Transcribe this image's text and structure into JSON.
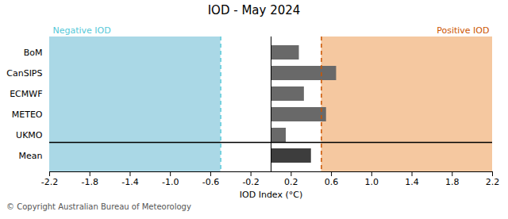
{
  "chart_data": {
    "type": "bar",
    "orientation": "horizontal",
    "title": "IOD - May 2024",
    "xlabel": "IOD Index (°C)",
    "categories": [
      "BoM",
      "CanSIPS",
      "ECMWF",
      "METEO",
      "UKMO",
      "Mean"
    ],
    "values": [
      0.28,
      0.65,
      0.33,
      0.55,
      0.15,
      0.4
    ],
    "colors": [
      "#696969",
      "#696969",
      "#696969",
      "#696969",
      "#696969",
      "#3d3d3d"
    ],
    "xlim": [
      -2.2,
      2.2
    ],
    "xticks": [
      -2.2,
      -1.8,
      -1.4,
      {
        "value": -1.0,
        "label": "-1.0"
      },
      -0.6,
      -0.2,
      0.2,
      0.6,
      {
        "value": 1.0,
        "label": "1.0"
      },
      1.4,
      1.8,
      2.2
    ],
    "grid": false,
    "regions": [
      {
        "from": -2.2,
        "to": -0.5,
        "color": "#aad8e6"
      },
      {
        "from": 0.5,
        "to": 2.2,
        "color": "#f5c8a0"
      }
    ],
    "thresholds": [
      {
        "value": -0.5,
        "color": "#55c8d8"
      },
      {
        "value": 0.5,
        "color": "#cc5500"
      }
    ],
    "annotations": [
      {
        "text": "Negative IOD",
        "color": "#55c8d8",
        "side": "left"
      },
      {
        "text": "Positive IOD",
        "color": "#cc5500",
        "side": "right"
      }
    ],
    "caption": "© Copyright Australian Bureau of Meteorology"
  }
}
